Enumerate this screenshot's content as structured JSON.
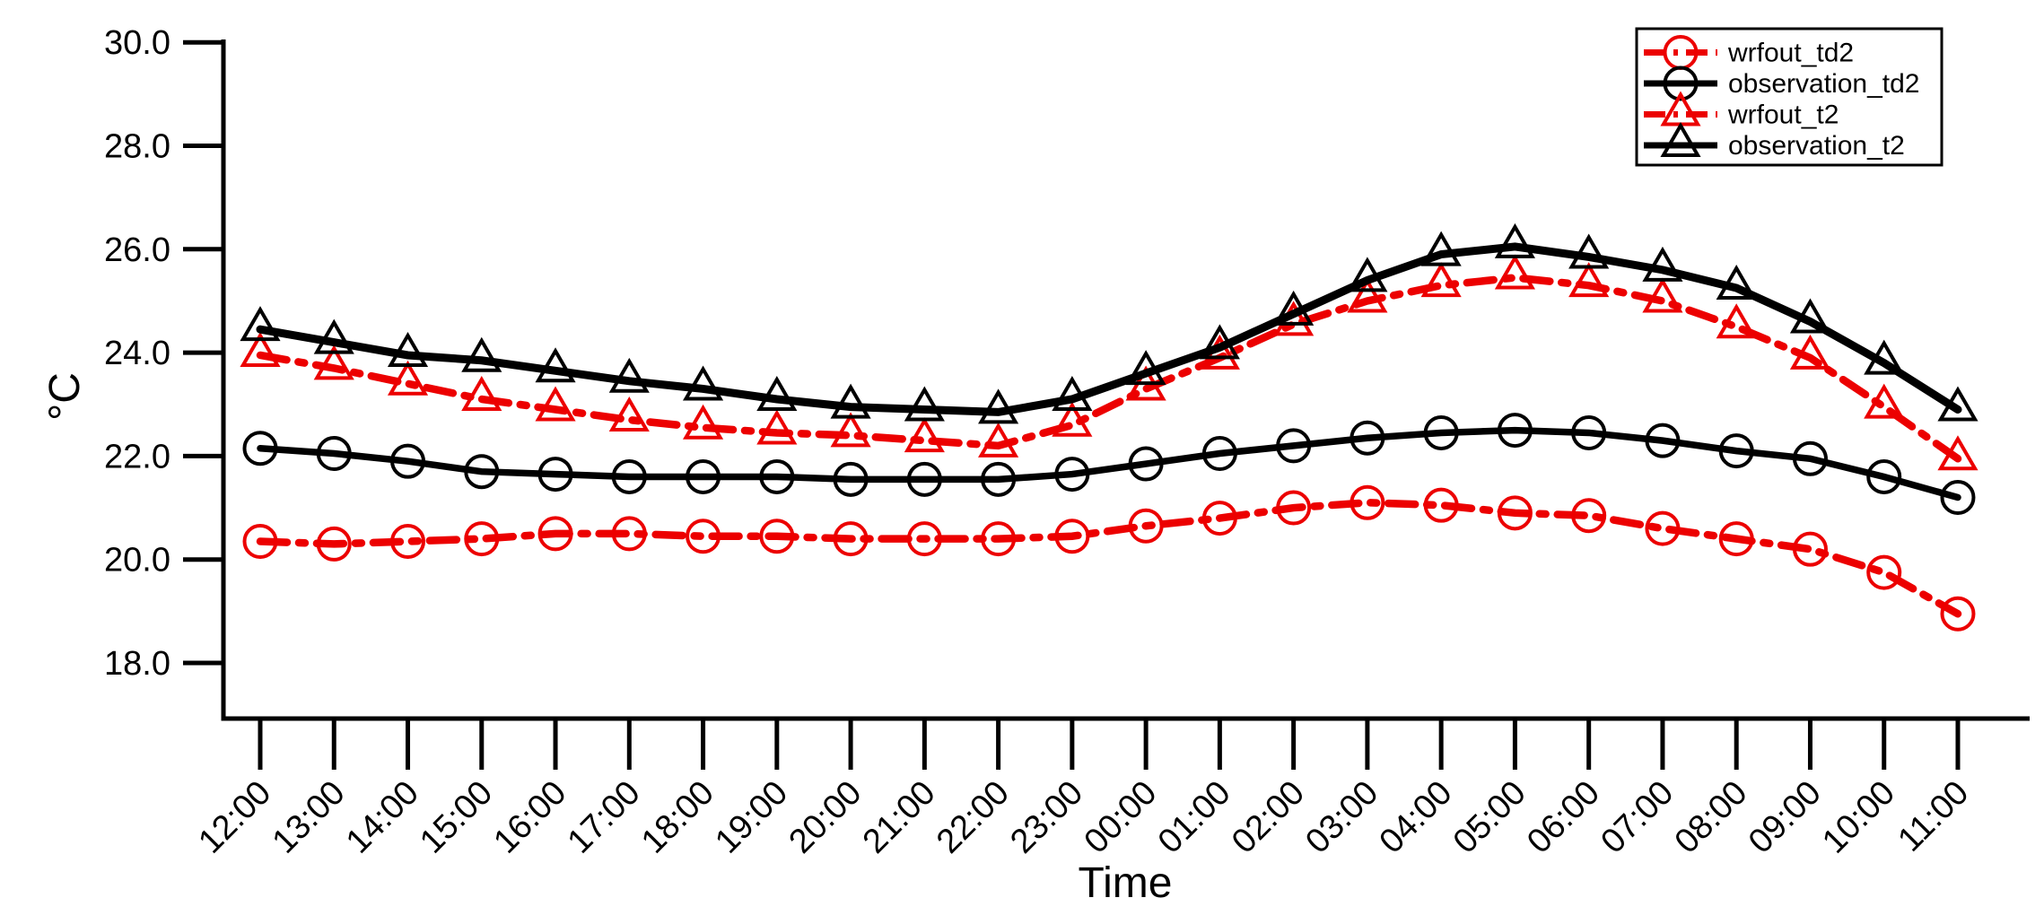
{
  "chart_data": {
    "type": "line",
    "title": "",
    "xlabel": "Time",
    "ylabel": "°C",
    "x_tick_labels": [
      "12:00",
      "13:00",
      "14:00",
      "15:00",
      "16:00",
      "17:00",
      "18:00",
      "19:00",
      "20:00",
      "21:00",
      "22:00",
      "23:00",
      "00:00",
      "01:00",
      "02:00",
      "03:00",
      "04:00",
      "05:00",
      "06:00",
      "07:00",
      "08:00",
      "09:00",
      "10:00",
      "11:00"
    ],
    "y_ticks": [
      30.0,
      28.0,
      26.0,
      24.0,
      22.0,
      20.0,
      18.0
    ],
    "y_tick_labels": [
      "30.0",
      "28.0",
      "26.0",
      "24.0",
      "22.0",
      "20.0",
      "18.0"
    ],
    "ylim": [
      16.9,
      30.0
    ],
    "grid": false,
    "legend_position": "top-right",
    "colors": {
      "red_series": "#ec0000",
      "black_series": "#000000",
      "background": "#ffffff"
    },
    "series": [
      {
        "name": "wrfout_td2",
        "color": "#ec0000",
        "line_style": "dash-dot",
        "marker": "circle",
        "values": [
          20.35,
          20.3,
          20.35,
          20.4,
          20.5,
          20.5,
          20.45,
          20.45,
          20.4,
          20.4,
          20.4,
          20.45,
          20.65,
          20.8,
          21.0,
          21.1,
          21.05,
          20.9,
          20.85,
          20.6,
          20.4,
          20.2,
          19.75,
          18.95
        ]
      },
      {
        "name": "observation_td2",
        "color": "#000000",
        "line_style": "solid",
        "marker": "circle",
        "values": [
          22.15,
          22.05,
          21.9,
          21.7,
          21.65,
          21.6,
          21.6,
          21.6,
          21.55,
          21.55,
          21.55,
          21.65,
          21.85,
          22.05,
          22.2,
          22.35,
          22.45,
          22.5,
          22.45,
          22.3,
          22.1,
          21.95,
          21.6,
          21.2
        ]
      },
      {
        "name": "wrfout_t2",
        "color": "#ec0000",
        "line_style": "dash-dot",
        "marker": "triangle",
        "values": [
          23.95,
          23.7,
          23.4,
          23.1,
          22.9,
          22.7,
          22.55,
          22.45,
          22.4,
          22.3,
          22.2,
          22.6,
          23.3,
          23.9,
          24.55,
          25.0,
          25.3,
          25.45,
          25.3,
          25.0,
          24.5,
          23.9,
          22.95,
          21.95
        ]
      },
      {
        "name": "observation_t2",
        "color": "#000000",
        "line_style": "solid",
        "marker": "triangle",
        "values": [
          24.45,
          24.2,
          23.95,
          23.85,
          23.65,
          23.45,
          23.3,
          23.1,
          22.95,
          22.9,
          22.85,
          23.1,
          23.6,
          24.1,
          24.75,
          25.4,
          25.9,
          26.05,
          25.85,
          25.6,
          25.25,
          24.6,
          23.8,
          22.9
        ]
      }
    ],
    "legend_entries": [
      "wrfout_td2",
      "observation_td2",
      "wrfout_t2",
      "observation_t2"
    ]
  }
}
